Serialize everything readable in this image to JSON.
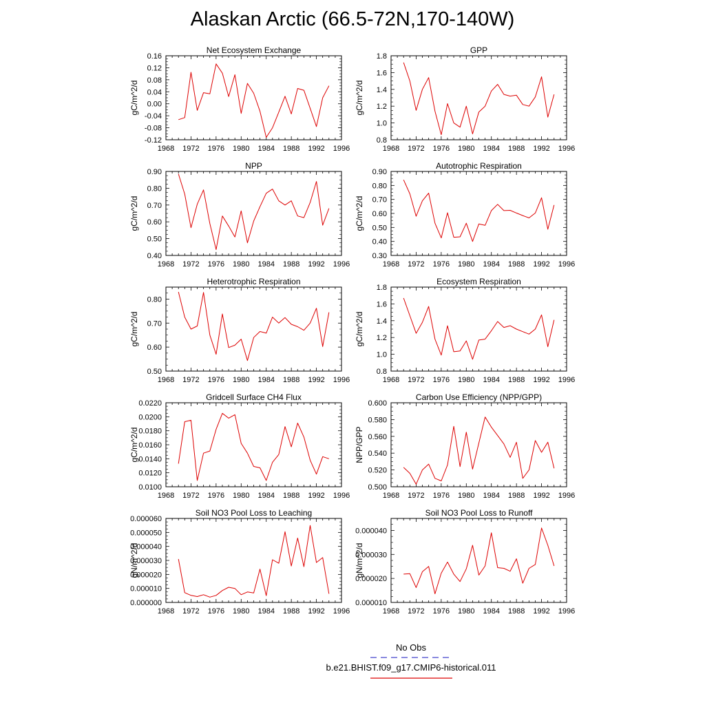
{
  "title": "Alaskan Arctic (66.5-72N,170-140W)",
  "colors": {
    "model": "#dd0000",
    "obs": "#4444cc",
    "axis": "#000000"
  },
  "legend": {
    "obs_label": "No Obs",
    "model_label": "b.e21.BHIST.f09_g17.CMIP6-historical.011"
  },
  "chart_data": [
    {
      "type": "line",
      "title": "Net Ecosystem Exchange",
      "ylabel": "gC/m^2/d",
      "xlim": [
        1968,
        1996
      ],
      "ylim": [
        -0.12,
        0.16
      ],
      "x_ticks": [
        "1968",
        "1972",
        "1976",
        "1980",
        "1984",
        "1988",
        "1992",
        "1996"
      ],
      "y_ticks": [
        "-0.12",
        "-0.08",
        "-0.04",
        "0.00",
        "0.04",
        "0.08",
        "0.12",
        "0.16"
      ],
      "series": [
        {
          "x": [
            1970,
            1971,
            1972,
            1973,
            1974,
            1975,
            1976,
            1977,
            1978,
            1979,
            1980,
            1981,
            1982,
            1983,
            1984,
            1985,
            1986,
            1987,
            1988,
            1989,
            1990,
            1991,
            1992,
            1993,
            1994
          ],
          "values": [
            -0.053,
            -0.046,
            0.105,
            -0.022,
            0.037,
            0.033,
            0.133,
            0.102,
            0.024,
            0.097,
            -0.032,
            0.068,
            0.035,
            -0.025,
            -0.112,
            -0.08,
            -0.028,
            0.025,
            -0.034,
            0.051,
            0.045,
            -0.015,
            -0.076,
            0.02,
            0.06
          ]
        }
      ]
    },
    {
      "type": "line",
      "title": "GPP",
      "ylabel": "gC/m^2/d",
      "xlim": [
        1968,
        1996
      ],
      "ylim": [
        0.8,
        1.8
      ],
      "x_ticks": [
        "1968",
        "1972",
        "1976",
        "1980",
        "1984",
        "1988",
        "1992",
        "1996"
      ],
      "y_ticks": [
        "0.8",
        "1.0",
        "1.2",
        "1.4",
        "1.6",
        "1.8"
      ],
      "series": [
        {
          "x": [
            1970,
            1971,
            1972,
            1973,
            1974,
            1975,
            1976,
            1977,
            1978,
            1979,
            1980,
            1981,
            1982,
            1983,
            1984,
            1985,
            1986,
            1987,
            1988,
            1989,
            1990,
            1991,
            1992,
            1993,
            1994
          ],
          "values": [
            1.72,
            1.5,
            1.15,
            1.4,
            1.54,
            1.14,
            0.86,
            1.23,
            1.0,
            0.95,
            1.2,
            0.87,
            1.13,
            1.2,
            1.38,
            1.46,
            1.34,
            1.32,
            1.33,
            1.22,
            1.2,
            1.31,
            1.55,
            1.07,
            1.34
          ]
        }
      ]
    },
    {
      "type": "line",
      "title": "NPP",
      "ylabel": "gC/m^2/d",
      "xlim": [
        1968,
        1996
      ],
      "ylim": [
        0.4,
        0.9
      ],
      "x_ticks": [
        "1968",
        "1972",
        "1976",
        "1980",
        "1984",
        "1988",
        "1992",
        "1996"
      ],
      "y_ticks": [
        "0.40",
        "0.50",
        "0.60",
        "0.70",
        "0.80",
        "0.90"
      ],
      "series": [
        {
          "x": [
            1970,
            1971,
            1972,
            1973,
            1974,
            1975,
            1976,
            1977,
            1978,
            1979,
            1980,
            1981,
            1982,
            1983,
            1984,
            1985,
            1986,
            1987,
            1988,
            1989,
            1990,
            1991,
            1992,
            1993,
            1994
          ],
          "values": [
            0.885,
            0.765,
            0.565,
            0.705,
            0.79,
            0.59,
            0.435,
            0.635,
            0.575,
            0.51,
            0.665,
            0.475,
            0.605,
            0.69,
            0.77,
            0.795,
            0.725,
            0.7,
            0.725,
            0.635,
            0.625,
            0.715,
            0.84,
            0.58,
            0.68
          ]
        }
      ]
    },
    {
      "type": "line",
      "title": "Autotrophic Respiration",
      "ylabel": "gC/m^2/d",
      "xlim": [
        1968,
        1996
      ],
      "ylim": [
        0.3,
        0.9
      ],
      "x_ticks": [
        "1968",
        "1972",
        "1976",
        "1980",
        "1984",
        "1988",
        "1992",
        "1996"
      ],
      "y_ticks": [
        "0.30",
        "0.40",
        "0.50",
        "0.60",
        "0.70",
        "0.80",
        "0.90"
      ],
      "series": [
        {
          "x": [
            1970,
            1971,
            1972,
            1973,
            1974,
            1975,
            1976,
            1977,
            1978,
            1979,
            1980,
            1981,
            1982,
            1983,
            1984,
            1985,
            1986,
            1987,
            1988,
            1989,
            1990,
            1991,
            1992,
            1993,
            1994
          ],
          "values": [
            0.84,
            0.74,
            0.58,
            0.69,
            0.745,
            0.53,
            0.425,
            0.605,
            0.43,
            0.433,
            0.53,
            0.4,
            0.525,
            0.515,
            0.62,
            0.665,
            0.62,
            0.622,
            0.603,
            0.585,
            0.568,
            0.603,
            0.712,
            0.487,
            0.66
          ]
        }
      ]
    },
    {
      "type": "line",
      "title": "Heterotrophic Respiration",
      "ylabel": "gC/m^2/d",
      "xlim": [
        1968,
        1996
      ],
      "ylim": [
        0.5,
        0.85
      ],
      "x_ticks": [
        "1968",
        "1972",
        "1976",
        "1980",
        "1984",
        "1988",
        "1992",
        "1996"
      ],
      "y_ticks": [
        "0.50",
        "0.60",
        "0.70",
        "0.80"
      ],
      "series": [
        {
          "x": [
            1970,
            1971,
            1972,
            1973,
            1974,
            1975,
            1976,
            1977,
            1978,
            1979,
            1980,
            1981,
            1982,
            1983,
            1984,
            1985,
            1986,
            1987,
            1988,
            1989,
            1990,
            1991,
            1992,
            1993,
            1994
          ],
          "values": [
            0.83,
            0.725,
            0.675,
            0.688,
            0.828,
            0.65,
            0.57,
            0.738,
            0.598,
            0.608,
            0.633,
            0.544,
            0.64,
            0.665,
            0.658,
            0.725,
            0.7,
            0.723,
            0.695,
            0.685,
            0.67,
            0.7,
            0.762,
            0.602,
            0.745
          ]
        }
      ]
    },
    {
      "type": "line",
      "title": "Ecosystem Respiration",
      "ylabel": "gC/m^2/d",
      "xlim": [
        1968,
        1996
      ],
      "ylim": [
        0.8,
        1.8
      ],
      "x_ticks": [
        "1968",
        "1972",
        "1976",
        "1980",
        "1984",
        "1988",
        "1992",
        "1996"
      ],
      "y_ticks": [
        "0.8",
        "1.0",
        "1.2",
        "1.4",
        "1.6",
        "1.8"
      ],
      "series": [
        {
          "x": [
            1970,
            1971,
            1972,
            1973,
            1974,
            1975,
            1976,
            1977,
            1978,
            1979,
            1980,
            1981,
            1982,
            1983,
            1984,
            1985,
            1986,
            1987,
            1988,
            1989,
            1990,
            1991,
            1992,
            1993,
            1994
          ],
          "values": [
            1.67,
            1.46,
            1.25,
            1.38,
            1.57,
            1.18,
            0.99,
            1.34,
            1.03,
            1.04,
            1.16,
            0.94,
            1.17,
            1.18,
            1.28,
            1.39,
            1.32,
            1.34,
            1.3,
            1.27,
            1.24,
            1.3,
            1.47,
            1.09,
            1.41
          ]
        }
      ]
    },
    {
      "type": "line",
      "title": "Gridcell Surface CH4 Flux",
      "ylabel": "gC/m^2/d",
      "xlim": [
        1968,
        1996
      ],
      "ylim": [
        0.01,
        0.022
      ],
      "x_ticks": [
        "1968",
        "1972",
        "1976",
        "1980",
        "1984",
        "1988",
        "1992",
        "1996"
      ],
      "y_ticks": [
        "0.0100",
        "0.0120",
        "0.0140",
        "0.0160",
        "0.0180",
        "0.0200",
        "0.0220"
      ],
      "series": [
        {
          "x": [
            1970,
            1971,
            1972,
            1973,
            1974,
            1975,
            1976,
            1977,
            1978,
            1979,
            1980,
            1981,
            1982,
            1983,
            1984,
            1985,
            1986,
            1987,
            1988,
            1989,
            1990,
            1991,
            1992,
            1993,
            1994
          ],
          "values": [
            0.0133,
            0.0193,
            0.0195,
            0.0109,
            0.0148,
            0.0151,
            0.0182,
            0.0205,
            0.0198,
            0.0203,
            0.0162,
            0.0148,
            0.0129,
            0.0127,
            0.0109,
            0.0135,
            0.0146,
            0.0186,
            0.0157,
            0.0191,
            0.0171,
            0.0138,
            0.0118,
            0.0143,
            0.014
          ]
        }
      ]
    },
    {
      "type": "line",
      "title": "Carbon Use Efficiency (NPP/GPP)",
      "ylabel": "NPP/GPP",
      "xlim": [
        1968,
        1996
      ],
      "ylim": [
        0.5,
        0.6
      ],
      "x_ticks": [
        "1968",
        "1972",
        "1976",
        "1980",
        "1984",
        "1988",
        "1992",
        "1996"
      ],
      "y_ticks": [
        "0.500",
        "0.520",
        "0.540",
        "0.560",
        "0.580",
        "0.600"
      ],
      "series": [
        {
          "x": [
            1970,
            1971,
            1972,
            1973,
            1974,
            1975,
            1976,
            1977,
            1978,
            1979,
            1980,
            1981,
            1982,
            1983,
            1984,
            1985,
            1986,
            1987,
            1988,
            1989,
            1990,
            1991,
            1992,
            1993,
            1994
          ],
          "values": [
            0.523,
            0.516,
            0.503,
            0.52,
            0.527,
            0.51,
            0.507,
            0.526,
            0.572,
            0.524,
            0.565,
            0.521,
            0.552,
            0.583,
            0.571,
            0.561,
            0.551,
            0.535,
            0.553,
            0.51,
            0.52,
            0.555,
            0.541,
            0.553,
            0.522
          ]
        }
      ]
    },
    {
      "type": "line",
      "title": "Soil NO3 Pool Loss to Leaching",
      "ylabel": "gN/m^2/d",
      "xlim": [
        1968,
        1996
      ],
      "ylim": [
        0,
        6e-05
      ],
      "x_ticks": [
        "1968",
        "1972",
        "1976",
        "1980",
        "1984",
        "1988",
        "1992",
        "1996"
      ],
      "y_ticks": [
        "0.000000",
        "0.000010",
        "0.000020",
        "0.000030",
        "0.000040",
        "0.000050",
        "0.000060"
      ],
      "series": [
        {
          "x": [
            1970,
            1971,
            1972,
            1973,
            1974,
            1975,
            1976,
            1977,
            1978,
            1979,
            1980,
            1981,
            1982,
            1983,
            1984,
            1985,
            1986,
            1987,
            1988,
            1989,
            1990,
            1991,
            1992,
            1993,
            1994
          ],
          "values": [
            3.1e-05,
            7e-06,
            5e-06,
            4.2e-06,
            5.5e-06,
            3.8e-06,
            5e-06,
            8.5e-06,
            1.08e-05,
            1e-05,
            5.5e-06,
            7.5e-06,
            6.8e-06,
            2.38e-05,
            4.8e-06,
            3.05e-05,
            2.8e-05,
            5.05e-05,
            2.6e-05,
            4.6e-05,
            2.55e-05,
            5.5e-05,
            2.85e-05,
            3.2e-05,
            6.2e-06
          ]
        }
      ]
    },
    {
      "type": "line",
      "title": "Soil NO3 Pool Loss to Runoff",
      "ylabel": "gN/m^2/d",
      "xlim": [
        1968,
        1996
      ],
      "ylim": [
        1e-05,
        4.5e-05
      ],
      "x_ticks": [
        "1968",
        "1972",
        "1976",
        "1980",
        "1984",
        "1988",
        "1992",
        "1996"
      ],
      "y_ticks": [
        "0.000010",
        "0.000020",
        "0.000030",
        "0.000040"
      ],
      "series": [
        {
          "x": [
            1970,
            1971,
            1972,
            1973,
            1974,
            1975,
            1976,
            1977,
            1978,
            1979,
            1980,
            1981,
            1982,
            1983,
            1984,
            1985,
            1986,
            1987,
            1988,
            1989,
            1990,
            1991,
            1992,
            1993,
            1994
          ],
          "values": [
            2.18e-05,
            2.2e-05,
            1.62e-05,
            2.28e-05,
            2.5e-05,
            1.36e-05,
            2.22e-05,
            2.68e-05,
            2.18e-05,
            1.87e-05,
            2.4e-05,
            3.38e-05,
            2.14e-05,
            2.52e-05,
            3.9e-05,
            2.45e-05,
            2.42e-05,
            2.3e-05,
            2.82e-05,
            1.8e-05,
            2.42e-05,
            2.58e-05,
            4.1e-05,
            3.38e-05,
            2.52e-05
          ]
        }
      ]
    }
  ]
}
